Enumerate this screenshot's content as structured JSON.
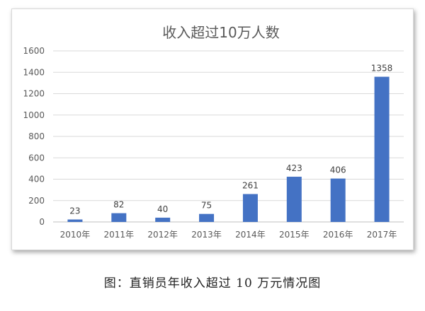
{
  "chart_data": {
    "type": "bar",
    "title": "收入超过10万人数",
    "categories": [
      "2010年",
      "2011年",
      "2012年",
      "2013年",
      "2014年",
      "2015年",
      "2016年",
      "2017年"
    ],
    "values": [
      23,
      82,
      40,
      75,
      261,
      423,
      406,
      1358
    ],
    "ylim": [
      0,
      1600
    ],
    "yticks": [
      0,
      200,
      400,
      600,
      800,
      1000,
      1200,
      1400,
      1600
    ],
    "grid": true,
    "data_labels": true,
    "bar_color": "#4472c4",
    "xlabel": "",
    "ylabel": ""
  },
  "caption": "图：直销员年收入超过 10 万元情况图"
}
